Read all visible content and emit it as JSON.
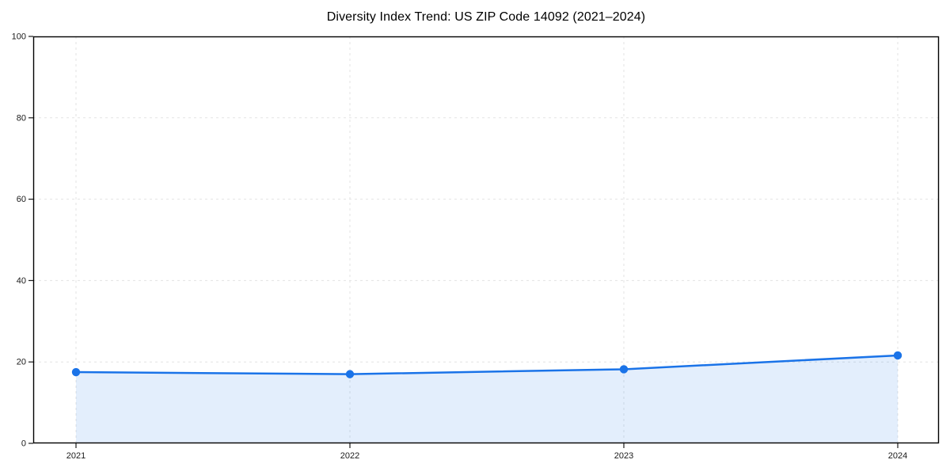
{
  "page": {
    "background_color": "#ffffff"
  },
  "chart_data": {
    "type": "area",
    "title": "Diversity Index Trend: US ZIP Code 14092 (2021–2024)",
    "categories": [
      "2021",
      "2022",
      "2023",
      "2024"
    ],
    "values": [
      17.5,
      17.0,
      18.2,
      21.6
    ],
    "xlabel": "",
    "ylabel": "",
    "ylim": [
      0,
      100
    ],
    "yticks": [
      0,
      20,
      40,
      60,
      80,
      100
    ],
    "grid": true,
    "grid_style": "dashed",
    "legend": false,
    "line_color": "#1a73e8",
    "marker_color": "#1a73e8",
    "area_fill_color": "rgba(26,115,232,0.12)",
    "gridline_color": "#e3e3e3",
    "axis_color": "#1a1a1a",
    "tick_label_color": "#1a1a1a"
  }
}
